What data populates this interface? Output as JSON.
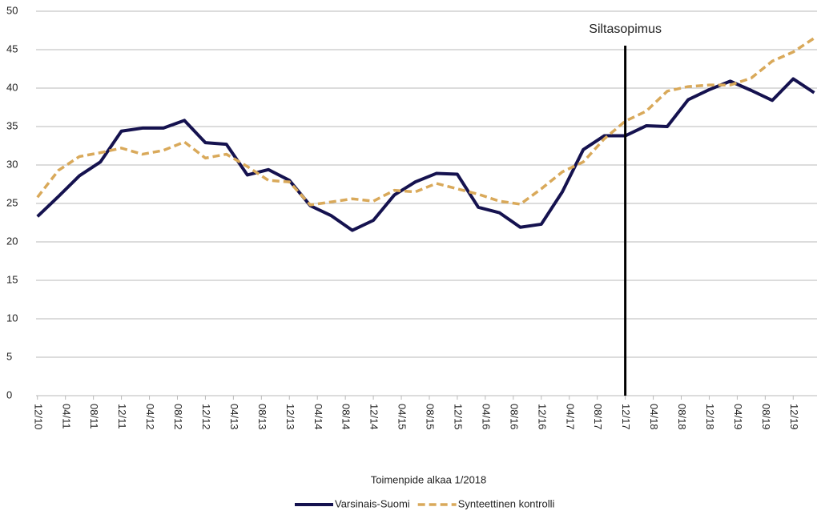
{
  "chart_data": {
    "type": "line",
    "x": [
      0,
      3,
      6,
      9,
      12,
      15,
      18,
      21,
      24,
      27,
      30,
      33,
      36,
      39,
      42,
      45,
      48,
      51,
      54,
      57,
      60,
      63,
      66,
      69,
      72,
      75,
      78,
      81,
      84,
      87,
      90,
      93,
      96,
      99,
      102,
      105,
      108,
      111
    ],
    "series": [
      {
        "name": "Varsinais-Suomi",
        "color": "#15124f",
        "dash": false,
        "values": [
          23.3,
          25.9,
          28.6,
          30.4,
          34.4,
          34.8,
          34.8,
          35.8,
          32.9,
          32.7,
          28.7,
          29.4,
          28.0,
          24.7,
          23.4,
          21.5,
          22.8,
          26.1,
          27.8,
          28.9,
          28.8,
          24.5,
          23.8,
          21.9,
          22.3,
          26.5,
          32.0,
          33.8,
          33.8,
          35.1,
          35.0,
          38.5,
          39.8,
          40.9,
          39.7,
          38.4,
          41.2,
          39.4
        ]
      },
      {
        "name": "Synteettinen kontrolli",
        "color": "#d9a95a",
        "dash": true,
        "values": [
          25.8,
          29.3,
          31.1,
          31.6,
          32.2,
          31.4,
          31.9,
          33.0,
          30.9,
          31.4,
          29.8,
          28.0,
          27.8,
          24.8,
          25.2,
          25.6,
          25.3,
          26.7,
          26.5,
          27.6,
          26.9,
          26.2,
          25.3,
          24.9,
          26.9,
          29.1,
          30.4,
          33.4,
          35.7,
          37.0,
          39.6,
          40.2,
          40.4,
          40.4,
          41.3,
          43.5,
          44.7,
          46.5
        ]
      }
    ],
    "xlim": [
      -0.2,
      111.4
    ],
    "xticks": [
      {
        "value": 0,
        "label": "12/10"
      },
      {
        "value": 4,
        "label": "04/11"
      },
      {
        "value": 8,
        "label": "08/11"
      },
      {
        "value": 12,
        "label": "12/11"
      },
      {
        "value": 16,
        "label": "04/12"
      },
      {
        "value": 20,
        "label": "08/12"
      },
      {
        "value": 24,
        "label": "12/12"
      },
      {
        "value": 28,
        "label": "04/13"
      },
      {
        "value": 32,
        "label": "08/13"
      },
      {
        "value": 36,
        "label": "12/13"
      },
      {
        "value": 40,
        "label": "04/14"
      },
      {
        "value": 44,
        "label": "08/14"
      },
      {
        "value": 48,
        "label": "12/14"
      },
      {
        "value": 52,
        "label": "04/15"
      },
      {
        "value": 56,
        "label": "08/15"
      },
      {
        "value": 60,
        "label": "12/15"
      },
      {
        "value": 64,
        "label": "04/16"
      },
      {
        "value": 68,
        "label": "08/16"
      },
      {
        "value": 72,
        "label": "12/16"
      },
      {
        "value": 76,
        "label": "04/17"
      },
      {
        "value": 80,
        "label": "08/17"
      },
      {
        "value": 84,
        "label": "12/17"
      },
      {
        "value": 88,
        "label": "04/18"
      },
      {
        "value": 92,
        "label": "08/18"
      },
      {
        "value": 96,
        "label": "12/18"
      },
      {
        "value": 100,
        "label": "04/19"
      },
      {
        "value": 104,
        "label": "08/19"
      },
      {
        "value": 108,
        "label": "12/19"
      }
    ],
    "ylim": [
      0,
      50
    ],
    "yticks": [
      0,
      5,
      10,
      15,
      20,
      25,
      30,
      35,
      40,
      45,
      50
    ],
    "grid": true,
    "x_label": "Toimenpide alkaa 1/2018",
    "annotation": {
      "x": 84,
      "label": "Siltasopimus"
    },
    "legend": "bottom"
  }
}
